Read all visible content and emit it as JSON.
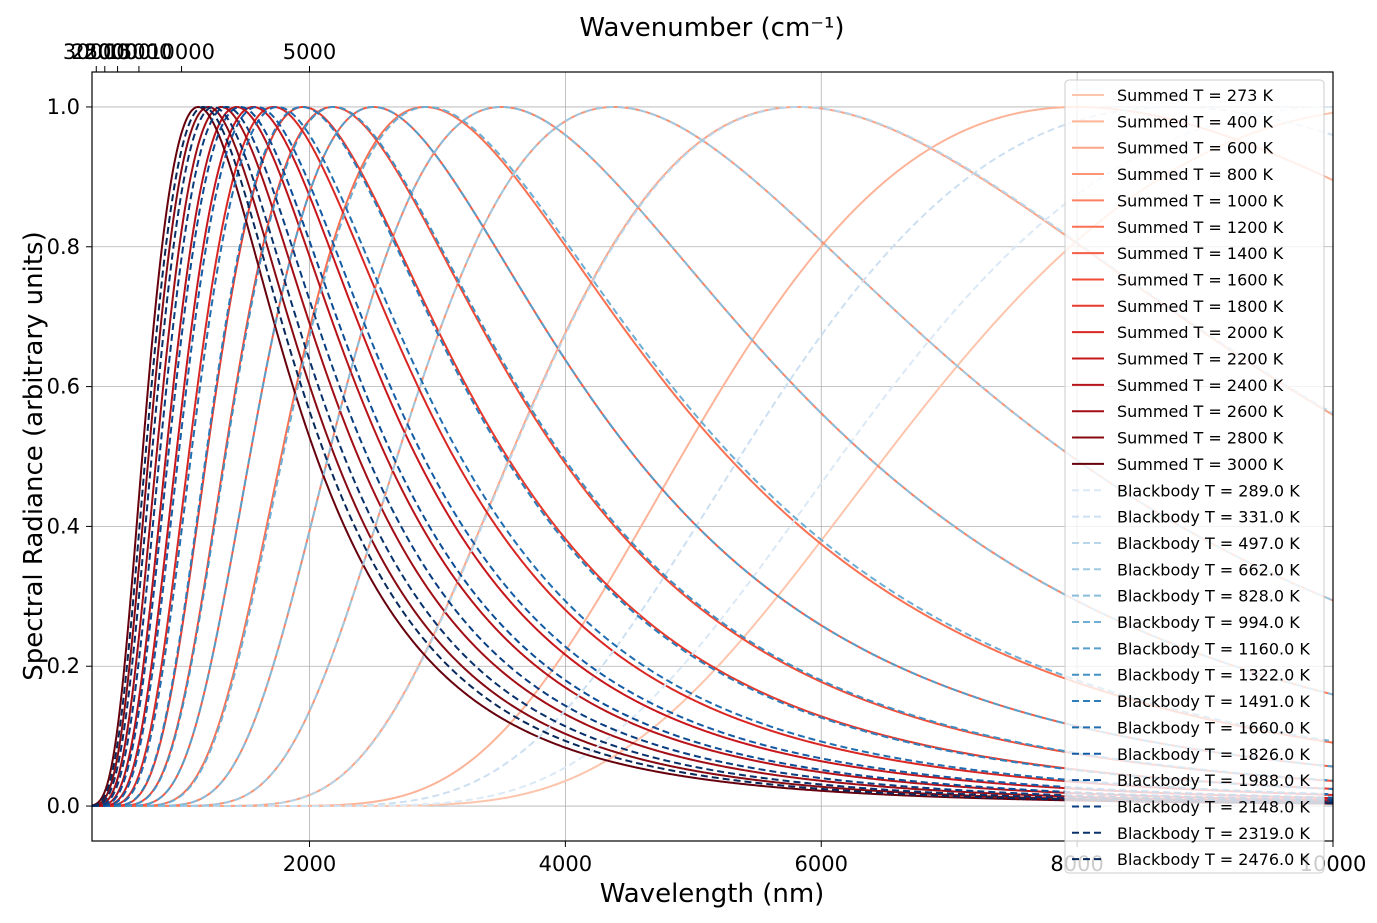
{
  "chart_data": {
    "type": "line",
    "title": "",
    "xlabel": "Wavelength (nm)",
    "ylabel": "Spectral Radiance (arbitrary units)",
    "top_xlabel": "Wavenumber (cm⁻¹)",
    "xlim": [
      300,
      10000
    ],
    "ylim": [
      -0.05,
      1.05
    ],
    "x_ticks": [
      "2000",
      "4000",
      "6000",
      "8000",
      "10000"
    ],
    "y_ticks": [
      "0.0",
      "0.2",
      "0.4",
      "0.6",
      "0.8",
      "1.0"
    ],
    "top_ticks": [
      {
        "label": "30000",
        "value": 30000
      },
      {
        "label": "25000",
        "value": 25000
      },
      {
        "label": "20000",
        "value": 20000
      },
      {
        "label": "15000",
        "value": 15000
      },
      {
        "label": "10000",
        "value": 10000
      },
      {
        "label": "5000",
        "value": 5000
      }
    ],
    "grid": true,
    "legend_position": "right",
    "normalization": "each curve normalized to peak 1.0",
    "series": [
      {
        "name": "Summed T = 273 K",
        "style": "solid",
        "color": "#fcc5ac",
        "peak_nm": 10600
      },
      {
        "name": "Summed T = 400 K",
        "style": "solid",
        "color": "#fcb499",
        "peak_nm": 8000
      },
      {
        "name": "Summed T = 600 K",
        "style": "solid",
        "color": "#fca486",
        "peak_nm": 5820
      },
      {
        "name": "Summed T = 800 K",
        "style": "solid",
        "color": "#fc9373",
        "peak_nm": 4380
      },
      {
        "name": "Summed T = 1000 K",
        "style": "solid",
        "color": "#fb8262",
        "peak_nm": 3500
      },
      {
        "name": "Summed T = 1200 K",
        "style": "solid",
        "color": "#fa7052",
        "peak_nm": 2900
      },
      {
        "name": "Summed T = 1400 K",
        "style": "solid",
        "color": "#f65d44",
        "peak_nm": 2500
      },
      {
        "name": "Summed T = 1600 K",
        "style": "solid",
        "color": "#f14b37",
        "peak_nm": 2180
      },
      {
        "name": "Summed T = 1800 K",
        "style": "solid",
        "color": "#e73a2d",
        "peak_nm": 1950
      },
      {
        "name": "Summed T = 2000 K",
        "style": "solid",
        "color": "#d92724",
        "peak_nm": 1720
      },
      {
        "name": "Summed T = 2200 K",
        "style": "solid",
        "color": "#c8171c",
        "peak_nm": 1560
      },
      {
        "name": "Summed T = 2400 K",
        "style": "solid",
        "color": "#b71319",
        "peak_nm": 1430
      },
      {
        "name": "Summed T = 2600 K",
        "style": "solid",
        "color": "#a10e15",
        "peak_nm": 1310
      },
      {
        "name": "Summed T = 2800 K",
        "style": "solid",
        "color": "#870a12",
        "peak_nm": 1210
      },
      {
        "name": "Summed T = 3000 K",
        "style": "solid",
        "color": "#67000d",
        "peak_nm": 1130
      },
      {
        "name": "Blackbody T = 289.0 K",
        "style": "dashed",
        "color": "#dbe9f6",
        "peak_nm": 10030
      },
      {
        "name": "Blackbody T = 331.0 K",
        "style": "dashed",
        "color": "#cde0f1",
        "peak_nm": 8750
      },
      {
        "name": "Blackbody T = 497.0 K",
        "style": "dashed",
        "color": "#b8d5ea",
        "peak_nm": 5830
      },
      {
        "name": "Blackbody T = 662.0 K",
        "style": "dashed",
        "color": "#a0c9e2",
        "peak_nm": 4380
      },
      {
        "name": "Blackbody T = 828.0 K",
        "style": "dashed",
        "color": "#87bcdb",
        "peak_nm": 3500
      },
      {
        "name": "Blackbody T = 994.0 K",
        "style": "dashed",
        "color": "#6eaed4",
        "peak_nm": 2920
      },
      {
        "name": "Blackbody T = 1160.0 K",
        "style": "dashed",
        "color": "#579fcb",
        "peak_nm": 2500
      },
      {
        "name": "Blackbody T = 1322.0 K",
        "style": "dashed",
        "color": "#4090c3",
        "peak_nm": 2190
      },
      {
        "name": "Blackbody T = 1491.0 K",
        "style": "dashed",
        "color": "#2f7eba",
        "peak_nm": 1940
      },
      {
        "name": "Blackbody T = 1660.0 K",
        "style": "dashed",
        "color": "#206db0",
        "peak_nm": 1750
      },
      {
        "name": "Blackbody T = 1826.0 K",
        "style": "dashed",
        "color": "#145ca5",
        "peak_nm": 1590
      },
      {
        "name": "Blackbody T = 1988.0 K",
        "style": "dashed",
        "color": "#0b4c96",
        "peak_nm": 1460
      },
      {
        "name": "Blackbody T = 2148.0 K",
        "style": "dashed",
        "color": "#083d80",
        "peak_nm": 1350
      },
      {
        "name": "Blackbody T = 2319.0 K",
        "style": "dashed",
        "color": "#08306b",
        "peak_nm": 1250
      },
      {
        "name": "Blackbody T = 2476.0 K",
        "style": "dashed",
        "color": "#06285a",
        "peak_nm": 1170
      }
    ]
  }
}
